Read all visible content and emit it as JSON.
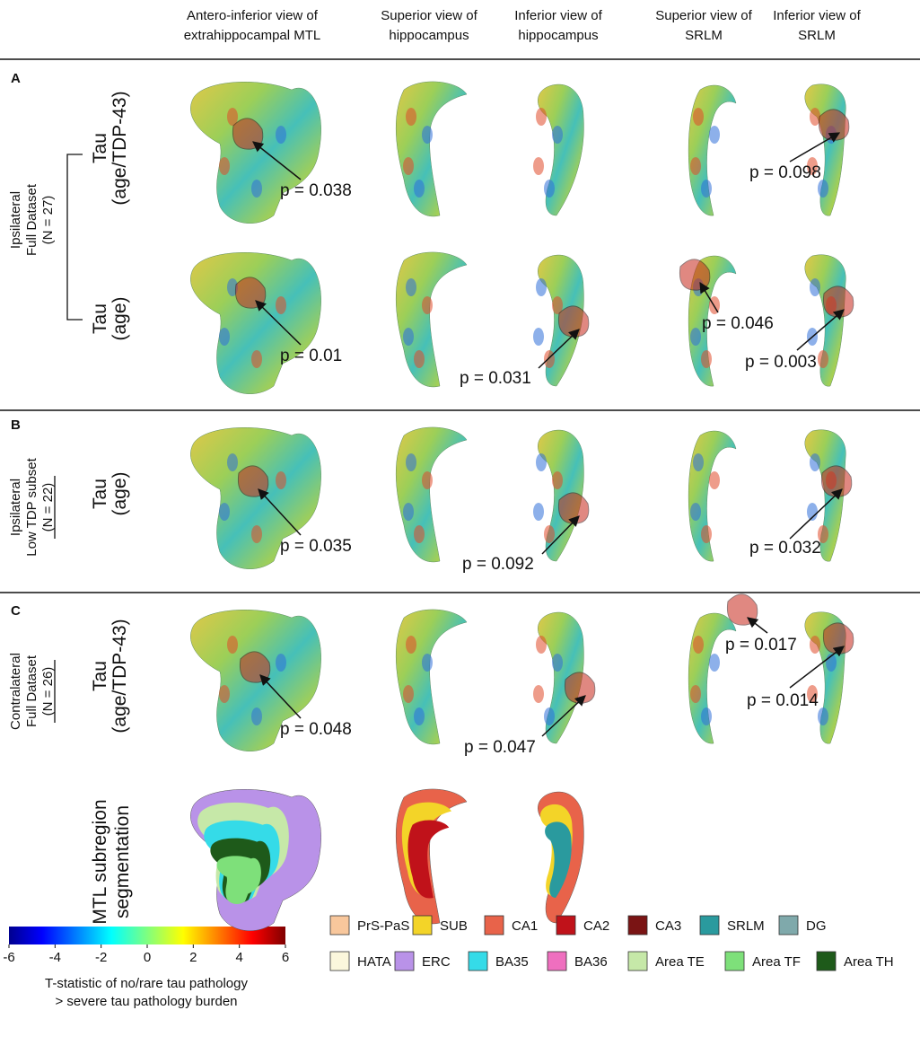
{
  "column_headers": [
    [
      "Antero-inferior view of",
      "extrahippocampal MTL"
    ],
    [
      "Superior view of",
      "hippocampus"
    ],
    [
      "Inferior view of",
      "hippocampus"
    ],
    [
      "Superior view of",
      "SRLM"
    ],
    [
      "Inferior view of",
      "SRLM"
    ]
  ],
  "panels": [
    {
      "letter": "A",
      "group": [
        "Ipsilateral",
        "Full Dataset",
        "(N = 27)"
      ],
      "rows": [
        {
          "label": [
            "Tau",
            "(age/TDP-43)"
          ],
          "p_values": [
            "p = 0.038",
            "p = 0.098"
          ]
        },
        {
          "label": [
            "Tau",
            "(age)"
          ],
          "p_values": [
            "p = 0.01",
            "p = 0.031",
            "p = 0.046",
            "p = 0.003"
          ]
        }
      ]
    },
    {
      "letter": "B",
      "group": [
        "Ipsilateral",
        "Low TDP subset",
        "(N = 22)"
      ],
      "rows": [
        {
          "label": [
            "Tau",
            "(age)"
          ],
          "p_values": [
            "p = 0.035",
            "p = 0.092",
            "p = 0.032"
          ]
        }
      ]
    },
    {
      "letter": "C",
      "group": [
        "Contralateral",
        "Full Dataset",
        "(N = 26)"
      ],
      "rows": [
        {
          "label": [
            "Tau",
            "(age/TDP-43)"
          ],
          "p_values": [
            "p = 0.048",
            "p = 0.047",
            "p = 0.017",
            "p = 0.014"
          ]
        }
      ]
    }
  ],
  "segmentation_label": [
    "MTL subregion",
    "segmentation"
  ],
  "colorbar": {
    "ticks": [
      -6,
      -4,
      -2,
      0,
      2,
      4,
      6
    ],
    "label": [
      "T-statistic of  no/rare tau pathology",
      "> severe tau pathology burden"
    ]
  },
  "legend": [
    {
      "name": "PrS-PaS",
      "color": "#f8c79c"
    },
    {
      "name": "SUB",
      "color": "#f3d428"
    },
    {
      "name": "CA1",
      "color": "#e8634a"
    },
    {
      "name": "CA2",
      "color": "#c0121a"
    },
    {
      "name": "CA3",
      "color": "#7a1414"
    },
    {
      "name": "SRLM",
      "color": "#2a9a9e"
    },
    {
      "name": "DG",
      "color": "#7fa9ab"
    },
    {
      "name": "HATA",
      "color": "#fbf7dc"
    },
    {
      "name": "ERC",
      "color": "#b992e8"
    },
    {
      "name": "BA35",
      "color": "#35dbe8"
    },
    {
      "name": "BA36",
      "color": "#ef6fbf"
    },
    {
      "name": "Area TE",
      "color": "#c6e8a8"
    },
    {
      "name": "Area TF",
      "color": "#7ee07a"
    },
    {
      "name": "Area TH",
      "color": "#1e5a1a"
    }
  ]
}
